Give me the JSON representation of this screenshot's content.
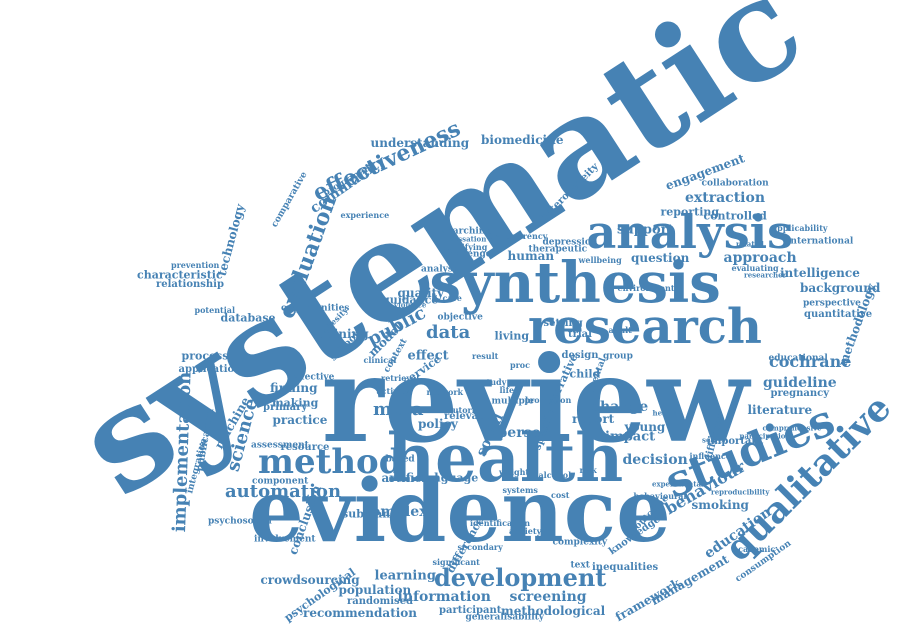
{
  "theme": {
    "word_color": "#4682b4",
    "background": "#ffffff"
  },
  "words": [
    "systematic",
    "review",
    "evidence",
    "health",
    "synthesis",
    "research",
    "analysis",
    "studies",
    "qualitative",
    "method",
    "development",
    "effectiveness",
    "evaluation",
    "implementation",
    "automation",
    "science",
    "data",
    "meta",
    "public",
    "behaviour",
    "guideline",
    "cochrane",
    "approach",
    "extraction",
    "background",
    "intelligence",
    "methodology",
    "education",
    "framework",
    "management",
    "screening",
    "information",
    "learning",
    "recommendation",
    "methodological",
    "participant",
    "crowdsourcing",
    "conclusion",
    "machine",
    "technology",
    "community",
    "biomedicine",
    "understanding",
    "engagement",
    "reporting",
    "controlled",
    "support",
    "human",
    "question",
    "quality",
    "guidance",
    "person",
    "social",
    "change",
    "impact",
    "decision",
    "young",
    "report",
    "literature",
    "complex",
    "artificial",
    "language",
    "substance",
    "smoking",
    "practice",
    "making",
    "finding",
    "primary",
    "policy",
    "effect",
    "mining",
    "model",
    "school",
    "service",
    "database",
    "processing",
    "application",
    "publication",
    "psychological",
    "population",
    "randomised",
    "generalisability",
    "comparative",
    "characteristic",
    "relationship",
    "programme",
    "experience",
    "international",
    "collaboration",
    "inequalities",
    "knowledge",
    "different",
    "important",
    "pregnancy",
    "perspective",
    "quantitative",
    "educational",
    "involvement",
    "difference",
    "text",
    "trial",
    "living",
    "child",
    "narrative",
    "specific",
    "relevant",
    "resource",
    "effective",
    "assessment",
    "component",
    "heterogeneity",
    "applicability",
    "consumption",
    "academic",
    "outcome",
    "group",
    "design",
    "setting",
    "context",
    "based",
    "multiple",
    "analyse",
    "objective",
    "challenge",
    "searching",
    "identifying",
    "cessation",
    "depression",
    "therapeutic",
    "transparency",
    "psychosocial",
    "integration",
    "secondary",
    "significant",
    "anxiety",
    "weight",
    "influence",
    "opportunities",
    "potential",
    "obesity",
    "activity",
    "retrieval",
    "promotion",
    "environmental",
    "evaluating",
    "researcher",
    "experimental",
    "behavioural",
    "complexity",
    "prevention",
    "identification",
    "reproducibility",
    "participation",
    "comprehensive",
    "related",
    "network",
    "tutorial",
    "clinical",
    "violence",
    "mental",
    "care",
    "result",
    "proc",
    "life",
    "study",
    "adult",
    "wellbeing",
    "search",
    "health",
    "systems",
    "alcohol",
    "cost",
    "risk",
    "need"
  ]
}
